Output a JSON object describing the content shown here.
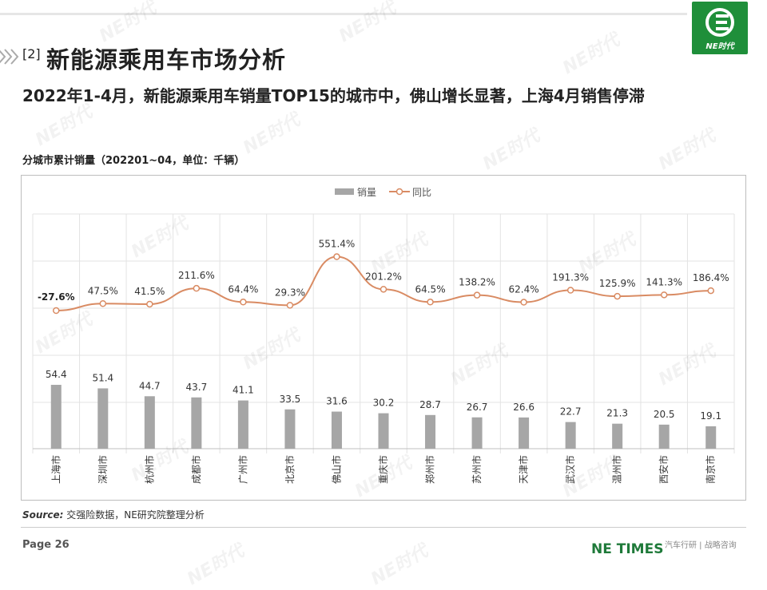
{
  "header": {
    "section_tag": "[2]",
    "title": "新能源乘用车市场分析",
    "subtitle": "2022年1-4月，新能源乘用车销量TOP15的城市中，佛山增长显著，上海4月销售停滞",
    "logo_text": "NE时代"
  },
  "chart_caption": "分城市累计销量（202201~04，单位：千辆）",
  "chart_data": {
    "type": "bar+line",
    "categories": [
      "上海市",
      "深圳市",
      "杭州市",
      "成都市",
      "广州市",
      "北京市",
      "佛山市",
      "重庆市",
      "郑州市",
      "苏州市",
      "天津市",
      "武汉市",
      "温州市",
      "西安市",
      "南京市"
    ],
    "series": [
      {
        "name": "销量",
        "type": "bar",
        "color": "#a6a6a6",
        "values": [
          54.4,
          51.4,
          44.7,
          43.7,
          41.1,
          33.5,
          31.6,
          30.2,
          28.7,
          26.7,
          26.6,
          22.7,
          21.3,
          20.5,
          19.1
        ],
        "labels": [
          "54.4",
          "51.4",
          "44.7",
          "43.7",
          "41.1",
          "33.5",
          "31.6",
          "30.2",
          "28.7",
          "26.7",
          "26.6",
          "22.7",
          "21.3",
          "20.5",
          "19.1"
        ]
      },
      {
        "name": "同比",
        "type": "line",
        "color": "#d98b63",
        "values": [
          -27.6,
          47.5,
          41.5,
          211.6,
          64.4,
          29.3,
          551.4,
          201.2,
          64.5,
          138.2,
          62.4,
          191.3,
          125.9,
          141.3,
          186.4
        ],
        "labels": [
          "-27.6%",
          "47.5%",
          "41.5%",
          "211.6%",
          "64.4%",
          "29.3%",
          "551.4%",
          "201.2%",
          "64.5%",
          "138.2%",
          "62.4%",
          "191.3%",
          "125.9%",
          "141.3%",
          "186.4%"
        ]
      }
    ],
    "legend_position": "top-center",
    "grid": true
  },
  "footer": {
    "source_label": "Source:",
    "source_text": "交强险数据，NE研究院整理分析",
    "page": "Page 26",
    "brand": "NE TIMES",
    "brand_tag": "汽车行研 | 战略咨询"
  },
  "watermark": "NE时代",
  "colors": {
    "brand_green": "#1f8f3a",
    "bar": "#a6a6a6",
    "line": "#d98b63"
  }
}
